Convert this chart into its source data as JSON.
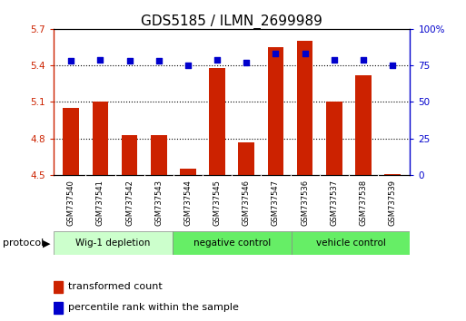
{
  "title": "GDS5185 / ILMN_2699989",
  "samples": [
    "GSM737540",
    "GSM737541",
    "GSM737542",
    "GSM737543",
    "GSM737544",
    "GSM737545",
    "GSM737546",
    "GSM737547",
    "GSM737536",
    "GSM737537",
    "GSM737538",
    "GSM737539"
  ],
  "transformed_count": [
    5.05,
    5.1,
    4.83,
    4.83,
    4.55,
    5.38,
    4.77,
    5.55,
    5.6,
    5.1,
    5.32,
    4.51
  ],
  "percentile_rank": [
    78,
    79,
    78,
    78,
    75,
    79,
    77,
    83,
    83,
    79,
    79,
    75
  ],
  "ylim_left": [
    4.5,
    5.7
  ],
  "ylim_right": [
    0,
    100
  ],
  "yticks_left": [
    4.5,
    4.8,
    5.1,
    5.4,
    5.7
  ],
  "yticks_right": [
    0,
    25,
    50,
    75,
    100
  ],
  "bar_color": "#cc2200",
  "dot_color": "#0000cc",
  "groups": [
    {
      "label": "Wig-1 depletion",
      "start": 0,
      "end": 4,
      "color": "#ccffcc"
    },
    {
      "label": "negative control",
      "start": 4,
      "end": 8,
      "color": "#66ee66"
    },
    {
      "label": "vehicle control",
      "start": 8,
      "end": 12,
      "color": "#66ee66"
    }
  ],
  "protocol_label": "protocol",
  "legend_bar_label": "transformed count",
  "legend_dot_label": "percentile rank within the sample",
  "title_fontsize": 11,
  "tick_fontsize": 7.5,
  "sample_fontsize": 6,
  "bar_width": 0.55
}
